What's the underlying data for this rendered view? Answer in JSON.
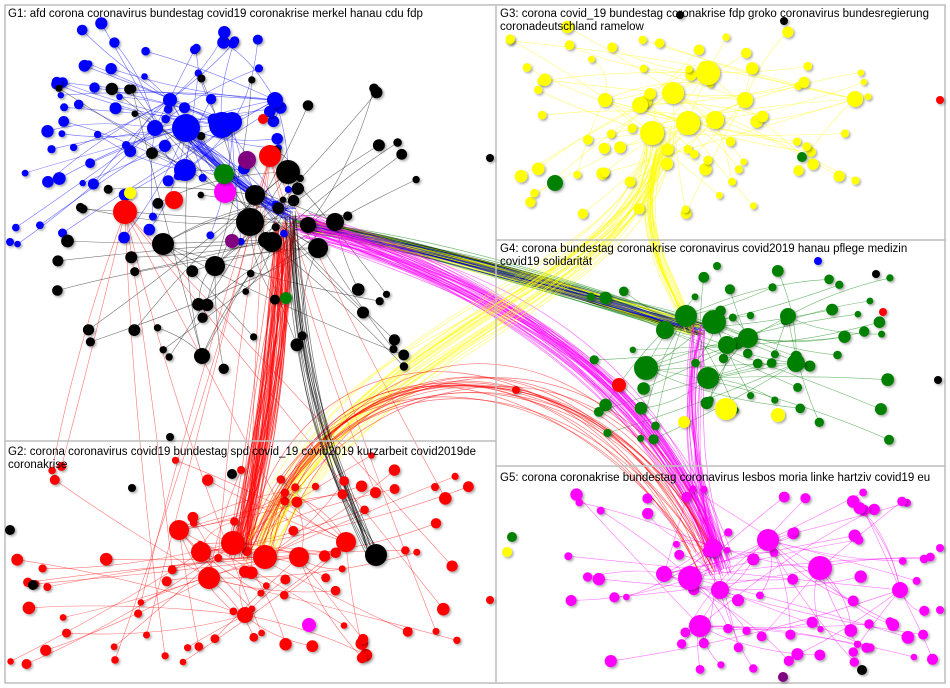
{
  "groups": [
    {
      "id": "G1",
      "label": "G1: afd corona coronavirus bundestag covid19 coronakrise merkel hanau cdu fdp",
      "color": "#0000ff"
    },
    {
      "id": "G2",
      "label": "G2: corona coronavirus covid19 bundestag spd covid_19 covid2019 kurzarbeit covid2019de coronakrise",
      "color": "#ff0000"
    },
    {
      "id": "G3",
      "label": "G3: corona covid_19 bundestag coronakrise fdp groko coronavirus bundesregierung coronadeutschland ramelow",
      "color": "#ffff00"
    },
    {
      "id": "G4",
      "label": "G4: corona bundestag coronakrise coronavirus covid2019 hanau pflege medizin covid19 solidarität",
      "color": "#008000"
    },
    {
      "id": "G5",
      "label": "G5: corona coronakrise bundestag coronavirus lesbos moria linke hartziv covid19 eu",
      "color": "#ff00ff"
    }
  ],
  "extra_colors": {
    "black_cluster": "#000000",
    "purple": "#800080",
    "frame": "#bdbdbd"
  }
}
